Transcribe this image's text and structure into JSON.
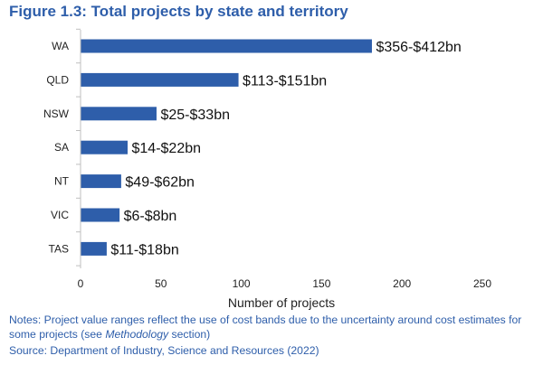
{
  "figure": {
    "title": "Figure 1.3: Total projects by state and territory"
  },
  "chart_data": {
    "type": "bar",
    "orientation": "horizontal",
    "categories": [
      "WA",
      "QLD",
      "NSW",
      "SA",
      "NT",
      "VIC",
      "TAS"
    ],
    "values": [
      181,
      98,
      47,
      29,
      25,
      24,
      16
    ],
    "data_labels": [
      "$356-$412bn",
      "$113-$151bn",
      "$25-$33bn",
      "$14-$22bn",
      "$49-$62bn",
      "$6-$8bn",
      "$11-$18bn"
    ],
    "xlabel": "Number of projects",
    "ylabel": "",
    "xlim": [
      0,
      250
    ],
    "xticks": [
      0,
      50,
      100,
      150,
      200,
      250
    ],
    "grid": false,
    "legend": "none",
    "bar_color": "#2e5eaa"
  },
  "notes": {
    "prefix": "Notes: Project value ranges reflect the use of cost bands due to the uncertainty around cost estimates for some projects (see ",
    "emphasis": "Methodology",
    "suffix": " section)"
  },
  "source": "Source: Department of Industry, Science and Resources (2022)"
}
